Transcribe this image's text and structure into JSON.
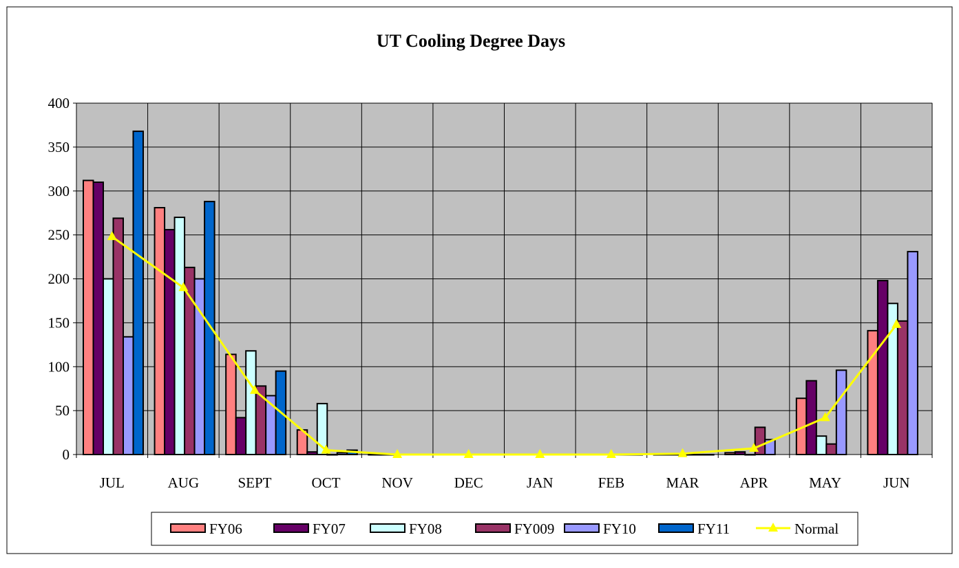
{
  "chart_data": {
    "type": "bar",
    "title": "UT Cooling Degree Days",
    "xlabel": "",
    "ylabel": "",
    "ylim": [
      0,
      400
    ],
    "yticks": [
      0,
      50,
      100,
      150,
      200,
      250,
      300,
      350,
      400
    ],
    "grid": true,
    "legend_position": "bottom",
    "plot_background": "#c0c0c0",
    "categories": [
      "JUL",
      "AUG",
      "SEPT",
      "OCT",
      "NOV",
      "DEC",
      "JAN",
      "FEB",
      "MAR",
      "APR",
      "MAY",
      "JUN"
    ],
    "series": [
      {
        "name": "FY06",
        "type": "bar",
        "color": "#ff8080",
        "values": [
          312,
          281,
          114,
          28,
          0,
          0,
          0,
          0,
          0,
          2,
          64,
          141
        ]
      },
      {
        "name": "FY07",
        "type": "bar",
        "color": "#660066",
        "values": [
          310,
          256,
          42,
          3,
          0,
          0,
          0,
          0,
          0,
          3,
          84,
          198
        ]
      },
      {
        "name": "FY08",
        "type": "bar",
        "color": "#ccffff",
        "values": [
          200,
          270,
          118,
          58,
          0,
          0,
          0,
          0,
          0,
          0,
          21,
          172
        ]
      },
      {
        "name": "FY009",
        "type": "bar",
        "color": "#993366",
        "values": [
          269,
          213,
          78,
          0,
          0,
          0,
          0,
          0,
          0,
          31,
          12,
          152
        ]
      },
      {
        "name": "FY10",
        "type": "bar",
        "color": "#9999ff",
        "values": [
          134,
          200,
          67,
          2,
          0,
          0,
          0,
          0,
          0,
          17,
          96,
          231
        ]
      },
      {
        "name": "FY11",
        "type": "bar",
        "color": "#0066cc",
        "values": [
          368,
          288,
          95,
          5,
          0,
          0,
          0,
          0,
          0,
          null,
          null,
          null
        ]
      },
      {
        "name": "Normal",
        "type": "line",
        "color": "#ffff00",
        "marker": "triangle",
        "values": [
          248,
          190,
          73,
          5,
          0,
          0,
          0,
          0,
          1,
          7,
          42,
          148
        ]
      }
    ]
  }
}
